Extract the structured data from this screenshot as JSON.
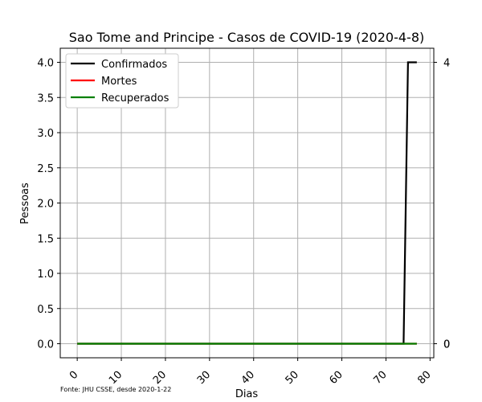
{
  "chart_data": {
    "type": "line",
    "title": "Sao Tome and Principe - Casos de COVID-19 (2020-4-8)",
    "xlabel": "Dias",
    "ylabel": "Pessoas",
    "xlim": [
      -3.85,
      80.85
    ],
    "ylim": [
      -0.2,
      4.2
    ],
    "xticks": [
      0,
      10,
      20,
      30,
      40,
      50,
      60,
      70,
      80
    ],
    "xtick_labels": [
      "0",
      "10",
      "20",
      "30",
      "40",
      "50",
      "60",
      "70",
      "80"
    ],
    "yticks": [
      0,
      0.5,
      1,
      1.5,
      2,
      2.5,
      3,
      3.5,
      4
    ],
    "ytick_labels": [
      "0.0",
      "0.5",
      "1.0",
      "1.5",
      "2.0",
      "2.5",
      "3.0",
      "3.5",
      "4.0"
    ],
    "grid": true,
    "legend_position": "top-left",
    "series": [
      {
        "name": "Confirmados",
        "color": "#000000",
        "x": [
          0,
          74,
          75,
          76,
          77
        ],
        "y": [
          0,
          0,
          4,
          4,
          4
        ]
      },
      {
        "name": "Mortes",
        "color": "#ff0000",
        "x": [
          0,
          77
        ],
        "y": [
          0,
          0
        ]
      },
      {
        "name": "Recuperados",
        "color": "#008000",
        "x": [
          0,
          77
        ],
        "y": [
          0,
          0
        ]
      }
    ],
    "right_labels": [
      {
        "value": 4,
        "text": "4"
      },
      {
        "value": 0,
        "text": "0"
      },
      {
        "value": 0,
        "text": "0"
      }
    ],
    "source_note": "Fonte: JHU CSSE, desde 2020-1-22"
  }
}
